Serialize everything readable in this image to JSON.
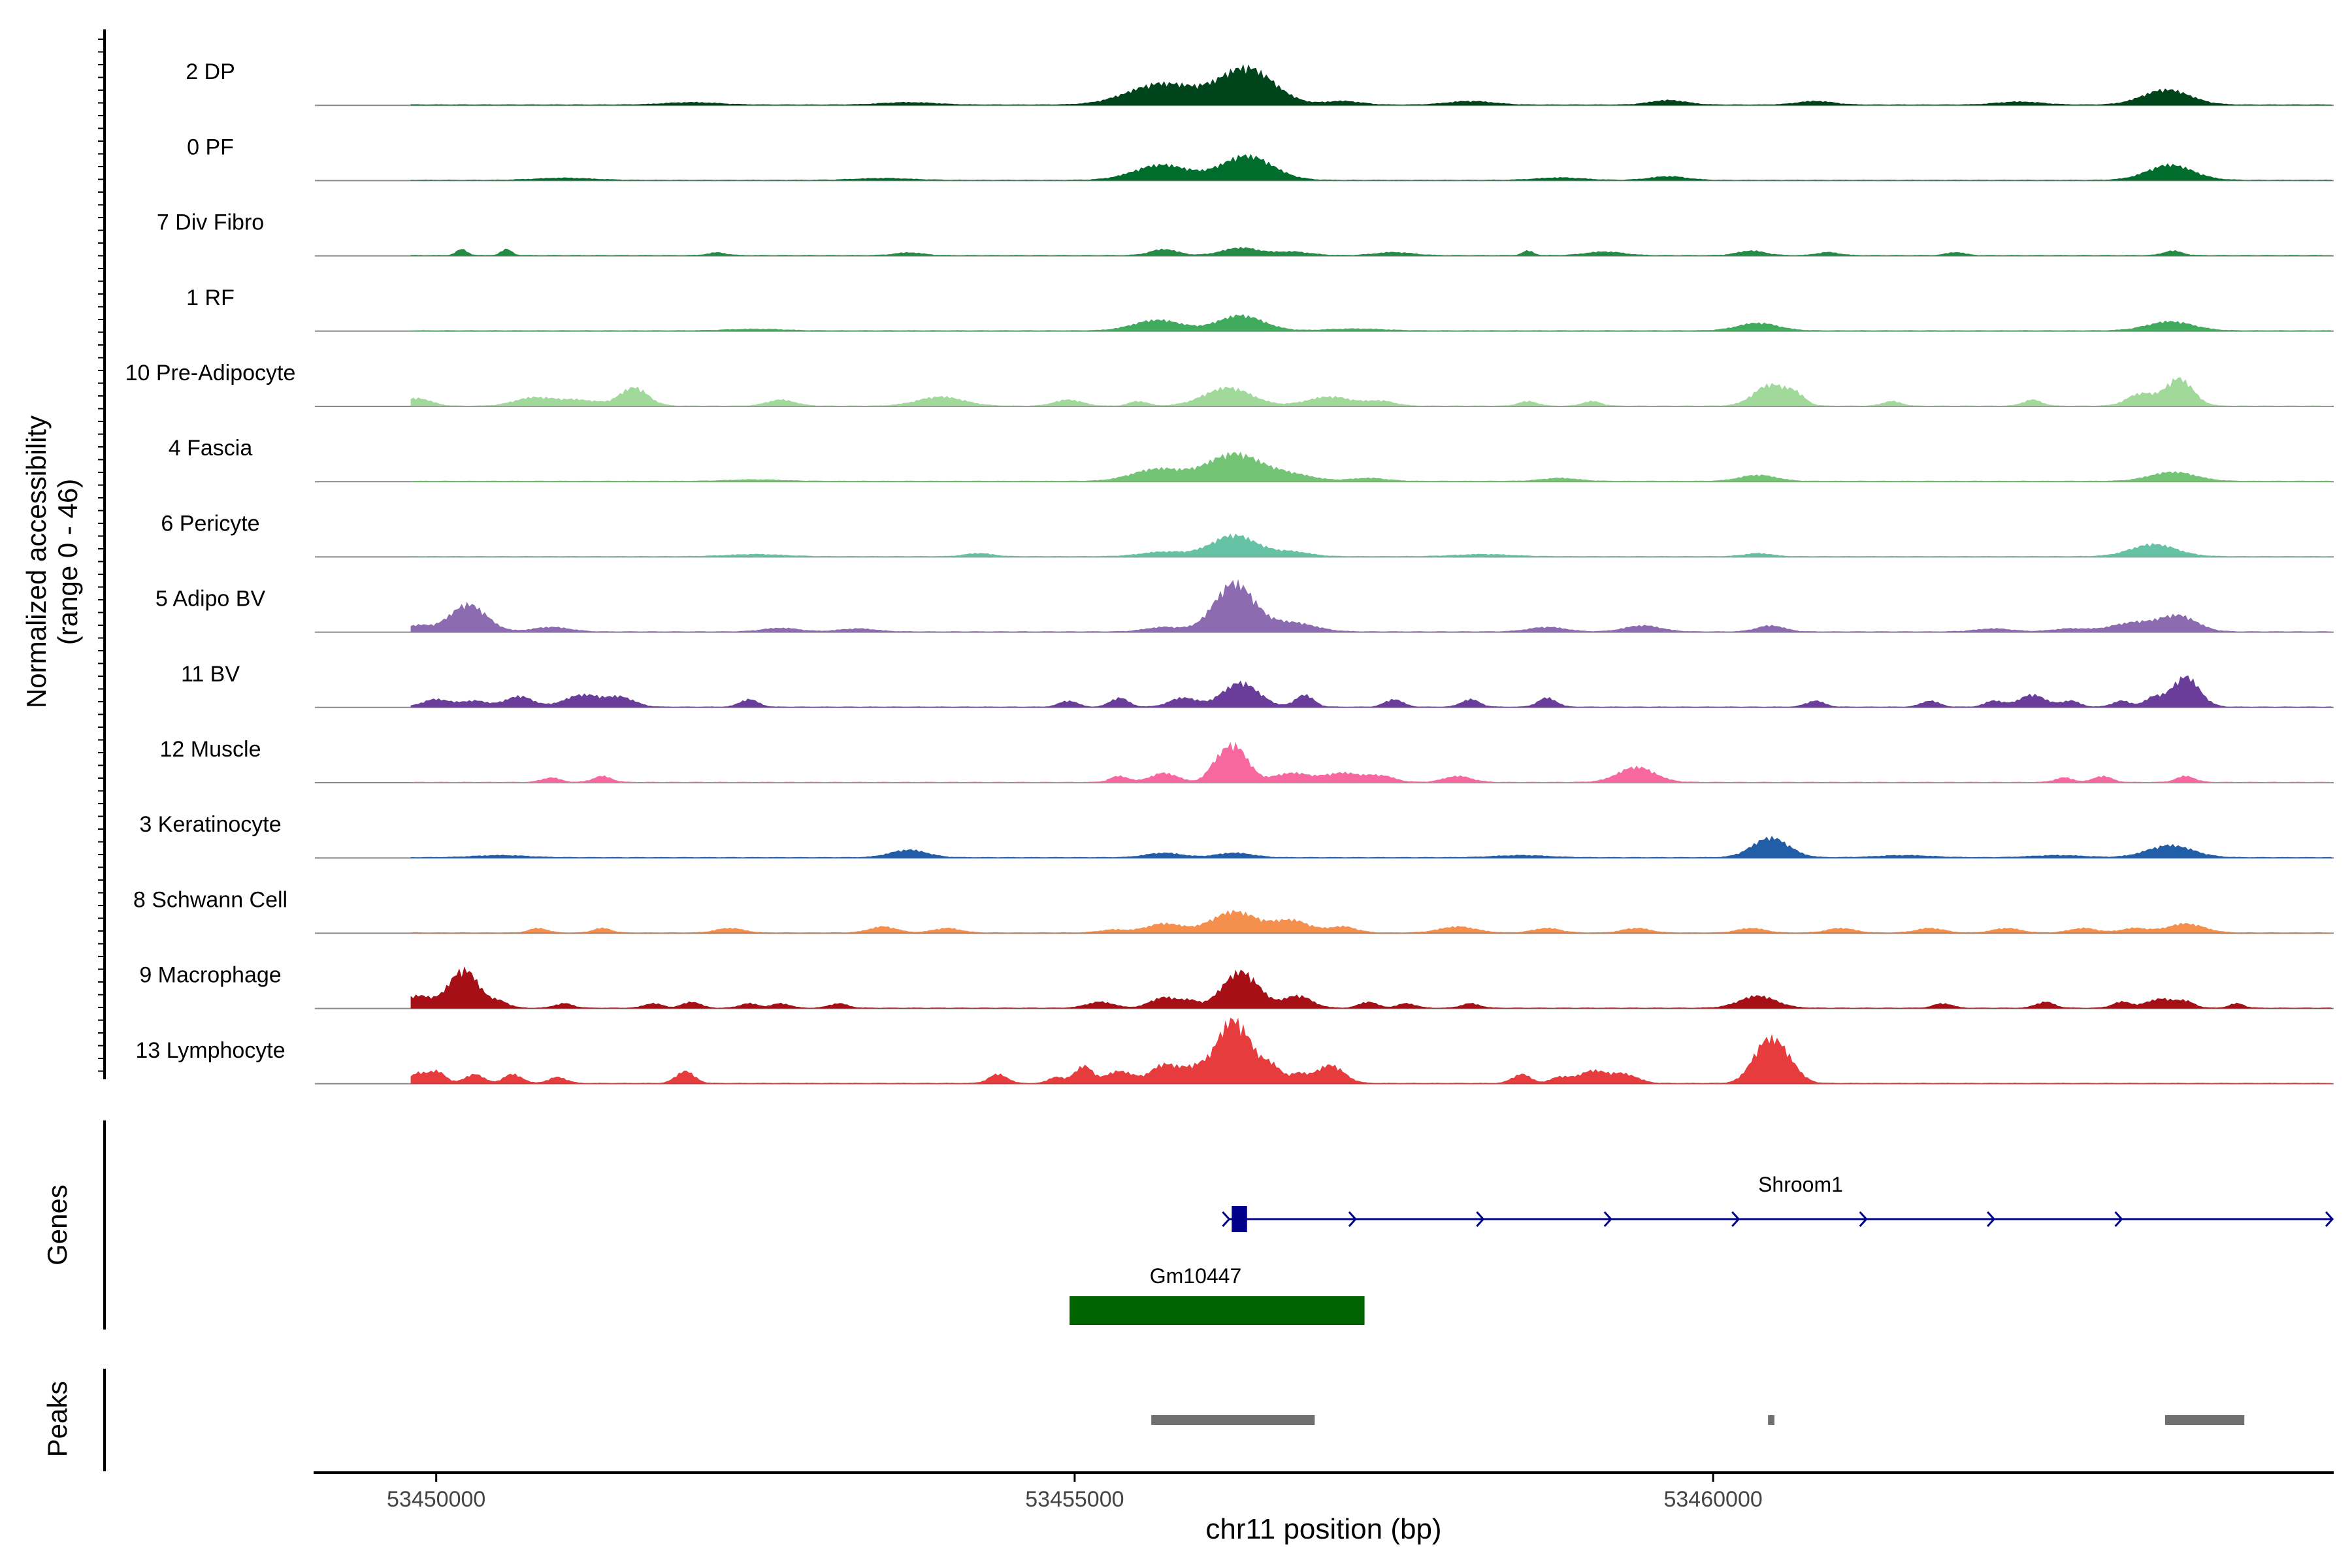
{
  "chart_data": {
    "type": "area",
    "title": "",
    "ylabel": "Normalized accessibility",
    "ylabel_range": "(range 0 - 46)",
    "xlabel": "chr11 position (bp)",
    "xlim": [
      53449050,
      53464860
    ],
    "ylim": [
      0,
      46
    ],
    "x_ticks": [
      "53450000",
      "53455000",
      "53460000"
    ],
    "x_tick_values": [
      53450000,
      53455000,
      53460000
    ],
    "grid": false,
    "legend": "none",
    "tracks": [
      {
        "name": "2 DP",
        "color": "#00441b",
        "peaks": [
          [
            53455690,
            7,
            380
          ],
          [
            53456350,
            12,
            300
          ],
          [
            53463550,
            5,
            260
          ],
          [
            53459650,
            1.5,
            200
          ],
          [
            53458100,
            1.2,
            250
          ],
          [
            53457100,
            1.2,
            200
          ],
          [
            53460800,
            1.2,
            200
          ],
          [
            53452000,
            0.8,
            300
          ],
          [
            53453700,
            0.8,
            300
          ],
          [
            53462400,
            1,
            250
          ]
        ]
      },
      {
        "name": "0 PF",
        "color": "#006d2c",
        "peaks": [
          [
            53455680,
            5,
            300
          ],
          [
            53456350,
            8,
            280
          ],
          [
            53463580,
            5,
            250
          ],
          [
            53459650,
            1.2,
            200
          ],
          [
            53451000,
            0.7,
            300
          ],
          [
            53458800,
            0.8,
            250
          ],
          [
            53453500,
            0.6,
            300
          ]
        ]
      },
      {
        "name": "7 Div Fibro",
        "color": "#238b45",
        "peaks": [
          [
            53450200,
            2,
            60
          ],
          [
            53450550,
            2,
            60
          ],
          [
            53455700,
            2,
            150
          ],
          [
            53456300,
            2.5,
            200
          ],
          [
            53456700,
            1.2,
            200
          ],
          [
            53458550,
            1.5,
            60
          ],
          [
            53459150,
            1.2,
            200
          ],
          [
            53460300,
            1.5,
            150
          ],
          [
            53463600,
            1.5,
            100
          ],
          [
            53452200,
            0.9,
            100
          ],
          [
            53453700,
            0.9,
            150
          ],
          [
            53457500,
            1,
            200
          ],
          [
            53460900,
            1,
            120
          ],
          [
            53461900,
            1,
            100
          ]
        ]
      },
      {
        "name": "1 RF",
        "color": "#41ab5d",
        "peaks": [
          [
            53455650,
            3.5,
            260
          ],
          [
            53456300,
            5,
            250
          ],
          [
            53460350,
            2.5,
            220
          ],
          [
            53463580,
            3,
            250
          ],
          [
            53457200,
            0.6,
            300
          ],
          [
            53452500,
            0.5,
            300
          ]
        ]
      },
      {
        "name": "10 Pre-Adipocyte",
        "color": "#a1d99b",
        "peaks": [
          [
            53449850,
            2.5,
            150
          ],
          [
            53450750,
            2.5,
            200
          ],
          [
            53451100,
            2,
            250
          ],
          [
            53451550,
            6,
            150
          ],
          [
            53452700,
            2,
            150
          ],
          [
            53453950,
            3,
            250
          ],
          [
            53454950,
            2,
            150
          ],
          [
            53455500,
            1.5,
            100
          ],
          [
            53456200,
            6,
            260
          ],
          [
            53457000,
            3,
            250
          ],
          [
            53457400,
            1.5,
            150
          ],
          [
            53458550,
            1.5,
            100
          ],
          [
            53459050,
            1.5,
            100
          ],
          [
            53460450,
            7,
            180
          ],
          [
            53460650,
            3,
            100
          ],
          [
            53461400,
            1.5,
            100
          ],
          [
            53462500,
            2,
            100
          ],
          [
            53463350,
            4,
            150
          ],
          [
            53463650,
            9,
            150
          ]
        ]
      },
      {
        "name": "4 Fascia",
        "color": "#74c476",
        "peaks": [
          [
            53455650,
            4,
            280
          ],
          [
            53456250,
            9,
            300
          ],
          [
            53456700,
            2,
            250
          ],
          [
            53457300,
            1,
            200
          ],
          [
            53460350,
            2,
            200
          ],
          [
            53463600,
            3,
            250
          ],
          [
            53458800,
            1,
            200
          ],
          [
            53452500,
            0.5,
            300
          ]
        ]
      },
      {
        "name": "6 Pericyte",
        "color": "#66c2a4",
        "peaks": [
          [
            53455700,
            1.5,
            250
          ],
          [
            53456250,
            7,
            250
          ],
          [
            53456700,
            1.5,
            200
          ],
          [
            53454250,
            1,
            150
          ],
          [
            53460350,
            1,
            150
          ],
          [
            53463450,
            4,
            250
          ],
          [
            53452500,
            0.7,
            300
          ],
          [
            53458200,
            0.7,
            300
          ]
        ]
      },
      {
        "name": "5 Adipo BV",
        "color": "#8c6bb1",
        "peaks": [
          [
            53449850,
            2,
            150
          ],
          [
            53450250,
            9,
            200
          ],
          [
            53450900,
            1.5,
            200
          ],
          [
            53452700,
            1.2,
            200
          ],
          [
            53453300,
            1,
            200
          ],
          [
            53455700,
            1.5,
            200
          ],
          [
            53456250,
            16,
            220
          ],
          [
            53456700,
            3,
            250
          ],
          [
            53458700,
            1.5,
            200
          ],
          [
            53459450,
            2,
            200
          ],
          [
            53460450,
            2,
            150
          ],
          [
            53462200,
            1,
            200
          ],
          [
            53462800,
            1,
            200
          ],
          [
            53463300,
            3,
            250
          ],
          [
            53463650,
            5,
            200
          ]
        ]
      },
      {
        "name": "11 BV",
        "color": "#6a3d9a",
        "peaks": [
          [
            53450000,
            2.5,
            150
          ],
          [
            53450300,
            2,
            150
          ],
          [
            53450650,
            3.5,
            150
          ],
          [
            53451150,
            4,
            200
          ],
          [
            53451450,
            3,
            150
          ],
          [
            53452450,
            2.5,
            100
          ],
          [
            53454950,
            2,
            100
          ],
          [
            53455350,
            3,
            100
          ],
          [
            53455850,
            3,
            150
          ],
          [
            53456300,
            8,
            200
          ],
          [
            53456800,
            4,
            100
          ],
          [
            53457500,
            2.5,
            100
          ],
          [
            53458100,
            2.5,
            100
          ],
          [
            53458700,
            3,
            100
          ],
          [
            53460800,
            2,
            100
          ],
          [
            53461700,
            2,
            100
          ],
          [
            53462200,
            2,
            100
          ],
          [
            53462500,
            4,
            150
          ],
          [
            53462800,
            2,
            100
          ],
          [
            53463200,
            2,
            100
          ],
          [
            53463450,
            3,
            100
          ],
          [
            53463700,
            10,
            150
          ]
        ]
      },
      {
        "name": "12 Muscle",
        "color": "#f768a1",
        "peaks": [
          [
            53450900,
            1.5,
            100
          ],
          [
            53451300,
            2,
            100
          ],
          [
            53455350,
            2,
            100
          ],
          [
            53455700,
            3,
            150
          ],
          [
            53456100,
            3,
            100
          ],
          [
            53456250,
            12,
            150
          ],
          [
            53456700,
            3,
            200
          ],
          [
            53457100,
            3,
            200
          ],
          [
            53457400,
            2,
            150
          ],
          [
            53458000,
            2,
            150
          ],
          [
            53459400,
            5,
            200
          ],
          [
            53462750,
            1.5,
            100
          ],
          [
            53463050,
            2,
            100
          ],
          [
            53463700,
            2,
            100
          ]
        ]
      },
      {
        "name": "3 Keratinocyte",
        "color": "#225ea8",
        "peaks": [
          [
            53453700,
            2.5,
            200
          ],
          [
            53455700,
            1.5,
            200
          ],
          [
            53456250,
            1.5,
            200
          ],
          [
            53460450,
            6.5,
            200
          ],
          [
            53463580,
            4,
            250
          ],
          [
            53450500,
            0.7,
            300
          ],
          [
            53458500,
            0.7,
            300
          ],
          [
            53461500,
            0.7,
            300
          ],
          [
            53462700,
            0.7,
            300
          ]
        ]
      },
      {
        "name": "8 Schwann Cell",
        "color": "#f16913",
        "peaks": [
          [
            53450800,
            1.5,
            100
          ],
          [
            53451300,
            1.5,
            100
          ],
          [
            53452300,
            1.5,
            150
          ],
          [
            53453500,
            2,
            150
          ],
          [
            53454000,
            1.5,
            150
          ],
          [
            53455300,
            1,
            150
          ],
          [
            53455700,
            3,
            200
          ],
          [
            53456250,
            7,
            250
          ],
          [
            53456700,
            4,
            200
          ],
          [
            53457100,
            2,
            150
          ],
          [
            53458000,
            2,
            200
          ],
          [
            53458700,
            1.5,
            150
          ],
          [
            53459400,
            1.5,
            150
          ],
          [
            53460300,
            1.5,
            150
          ],
          [
            53461000,
            1.5,
            150
          ],
          [
            53461700,
            1.5,
            150
          ],
          [
            53462300,
            1.5,
            150
          ],
          [
            53462900,
            1.5,
            150
          ],
          [
            53463300,
            1.5,
            150
          ],
          [
            53463700,
            3,
            200
          ]
        ],
        "opacity": 0.75
      },
      {
        "name": "9 Macrophage",
        "color": "#a50f15",
        "peaks": [
          [
            53449850,
            4,
            150
          ],
          [
            53450150,
            5,
            150
          ],
          [
            53450250,
            9,
            150
          ],
          [
            53450500,
            2,
            100
          ],
          [
            53451000,
            1.5,
            100
          ],
          [
            53451700,
            1.5,
            100
          ],
          [
            53452000,
            2,
            100
          ],
          [
            53452450,
            1.5,
            100
          ],
          [
            53452700,
            1.5,
            100
          ],
          [
            53453150,
            1.5,
            100
          ],
          [
            53455200,
            2,
            150
          ],
          [
            53455700,
            3.5,
            150
          ],
          [
            53455900,
            2,
            100
          ],
          [
            53456300,
            12,
            200
          ],
          [
            53456750,
            4,
            150
          ],
          [
            53457300,
            2,
            100
          ],
          [
            53457600,
            1.5,
            100
          ],
          [
            53458100,
            1.5,
            100
          ],
          [
            53460350,
            4,
            200
          ],
          [
            53461800,
            1.5,
            100
          ],
          [
            53462600,
            2,
            100
          ],
          [
            53463200,
            2,
            100
          ],
          [
            53463500,
            3,
            150
          ],
          [
            53463700,
            2,
            100
          ],
          [
            53464100,
            1.5,
            80
          ]
        ]
      },
      {
        "name": "13 Lymphocyte",
        "color": "#e31a1c",
        "peaks": [
          [
            53449850,
            3,
            80
          ],
          [
            53450000,
            4,
            100
          ],
          [
            53450300,
            3,
            100
          ],
          [
            53450600,
            3,
            100
          ],
          [
            53450950,
            2,
            100
          ],
          [
            53451950,
            4,
            100
          ],
          [
            53454400,
            3,
            100
          ],
          [
            53454850,
            2,
            80
          ],
          [
            53455100,
            2,
            80
          ],
          [
            53455700,
            6,
            150
          ],
          [
            53455950,
            5,
            150
          ],
          [
            53456200,
            16,
            150
          ],
          [
            53456350,
            10,
            150
          ],
          [
            53456750,
            3,
            100
          ],
          [
            53457000,
            6,
            150
          ],
          [
            53458500,
            3,
            100
          ],
          [
            53458800,
            2,
            100
          ],
          [
            53459050,
            4,
            150
          ],
          [
            53459300,
            3,
            150
          ],
          [
            53460400,
            11,
            150
          ],
          [
            53460550,
            8,
            150
          ],
          [
            53455350,
            4,
            150
          ],
          [
            53455050,
            4,
            100
          ],
          [
            53456550,
            5,
            100
          ]
        ],
        "opacity": 0.85
      }
    ],
    "genes": [
      {
        "name": "Shroom1",
        "start": 53456210,
        "end": 53464850,
        "strand": "+",
        "color": "#00008b",
        "exon": [
          53456230,
          53456350
        ]
      },
      {
        "name": "Gm10447",
        "start": 53454960,
        "end": 53457270,
        "strand": "",
        "color": "#006400"
      }
    ],
    "peaks_track": {
      "label": "Peaks",
      "color": "#707070",
      "regions": [
        [
          53455600,
          53456880
        ],
        [
          53460430,
          53460480
        ],
        [
          53463540,
          53464160
        ]
      ]
    },
    "panel_labels": {
      "genes": "Genes",
      "peaks": "Peaks"
    }
  }
}
